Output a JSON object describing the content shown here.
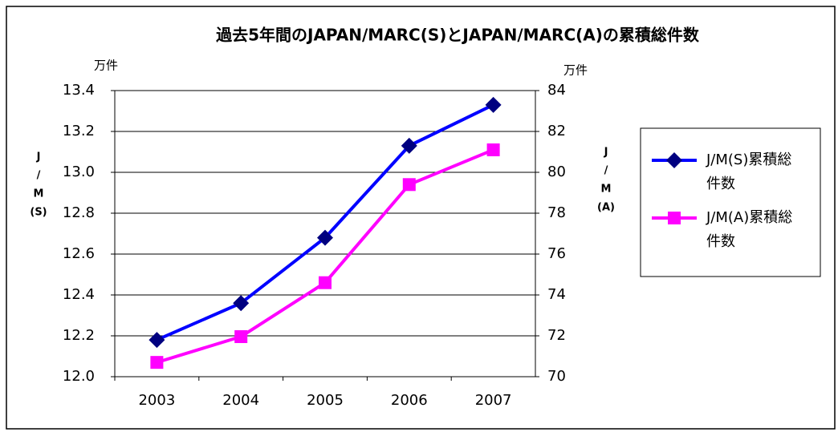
{
  "chart_data": {
    "type": "line",
    "title": "過去5年間のJAPAN/MARC(S)とJAPAN/MARC(A)の累積総件数",
    "yunit": "万件",
    "y2unit": "万件",
    "ylabel": [
      "J",
      "/",
      "M",
      "(S)"
    ],
    "y2label": [
      "J",
      "/",
      "M",
      "(A)"
    ],
    "categories": [
      "2003",
      "2004",
      "2005",
      "2006",
      "2007"
    ],
    "series": [
      {
        "name": "J/M(S)累積総件数",
        "color": "#0000ff",
        "marker_color": "#000080",
        "marker": "diamond",
        "values": [
          12.18,
          12.36,
          12.68,
          13.13,
          13.33
        ]
      },
      {
        "name": "J/M(A)累積総件数",
        "color": "#ff00ff",
        "marker_color": "#ff00ff",
        "marker": "square",
        "axis": "y2",
        "values": [
          70.7,
          71.96,
          74.6,
          79.4,
          81.1
        ]
      }
    ],
    "ylim": [
      12.0,
      13.4
    ],
    "yticks": [
      {
        "value": 12.0,
        "label": "12.0"
      },
      12.2,
      12.4,
      12.6,
      12.8,
      {
        "value": 13.0,
        "label": "13.0"
      },
      13.2,
      13.4
    ],
    "y2lim": [
      70,
      84
    ],
    "y2ticks": [
      70,
      72,
      74,
      76,
      78,
      80,
      82,
      84
    ],
    "grid": true,
    "legend": "right"
  }
}
